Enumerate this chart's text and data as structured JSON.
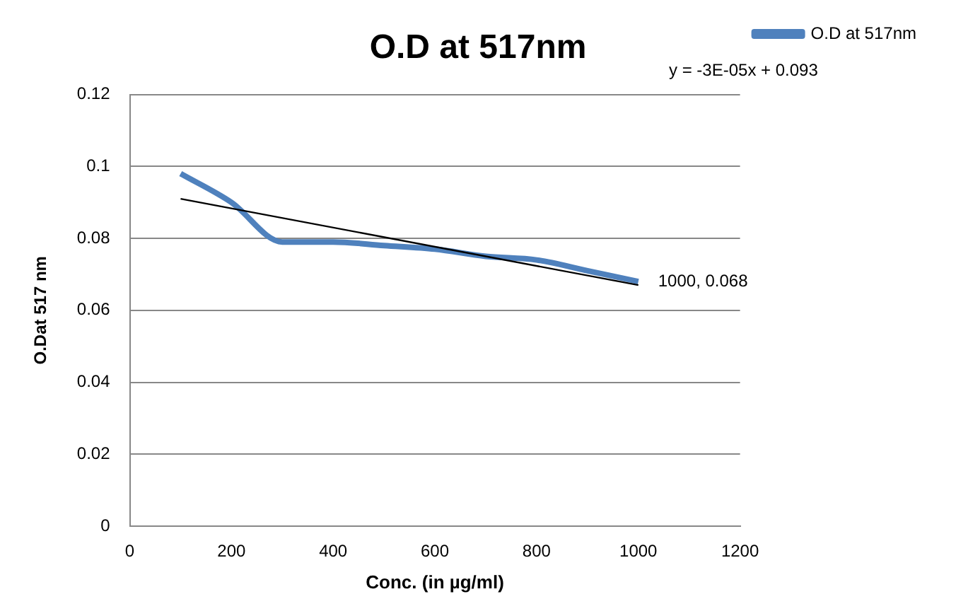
{
  "chart_data": {
    "type": "line",
    "title": "O.D at 517nm",
    "xlabel": "Conc. (in µg/ml)",
    "ylabel": "O.Dat 517 nm",
    "series": [
      {
        "name": "O.D at 517nm",
        "color": "#4f81bd",
        "x": [
          100,
          200,
          300,
          400,
          500,
          600,
          700,
          800,
          900,
          1000
        ],
        "values": [
          0.098,
          0.09,
          0.079,
          0.079,
          0.078,
          0.077,
          0.075,
          0.074,
          0.071,
          0.068
        ]
      },
      {
        "type": "line",
        "color": "#000000",
        "x": [
          100,
          1000
        ],
        "values": [
          0.091,
          0.067
        ]
      }
    ],
    "xlim": [
      0,
      1200
    ],
    "xticks": [
      0,
      200,
      400,
      600,
      800,
      1000,
      1200
    ],
    "ylim": [
      0,
      0.12
    ],
    "yticks": [
      0,
      0.02,
      0.04,
      0.06,
      0.08,
      0.1,
      0.12
    ],
    "grid": "y",
    "legend": "top right",
    "marker": "none",
    "annotations": [
      "y = -3E-05x + 0.093",
      {
        "text": "1000, 0.068",
        "x": 1000,
        "y": 0.068
      }
    ]
  }
}
